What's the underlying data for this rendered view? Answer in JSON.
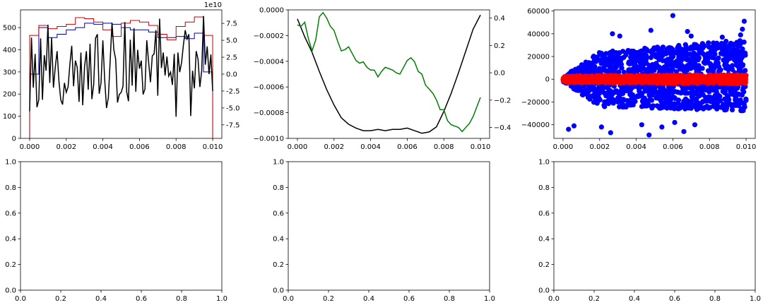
{
  "figure": {
    "colors": {
      "black": "#000000",
      "blue": "#0000ff",
      "red": "#ff0000",
      "darkred": "#cc0000",
      "green": "#008000",
      "darkblue": "#0000aa"
    }
  },
  "chart_data": [
    {
      "type": "line",
      "xlim": [
        -0.0005,
        0.0105
      ],
      "xticks": [
        0.0,
        0.002,
        0.004,
        0.006,
        0.008,
        0.01
      ],
      "xtick_labels": [
        "0.000",
        "0.002",
        "0.004",
        "0.006",
        "0.008",
        "0.010"
      ],
      "ylim": [
        0,
        580
      ],
      "yticks": [
        0,
        100,
        200,
        300,
        400,
        500
      ],
      "ytick_labels": [
        "0",
        "100",
        "200",
        "300",
        "400",
        "500"
      ],
      "y2lim": [
        -95000000000.0,
        95000000000.0
      ],
      "y2ticks": [
        -7.5,
        -5.0,
        -2.5,
        0.0,
        2.5,
        5.0,
        7.5
      ],
      "y2tick_labels": [
        "-7.5",
        "-5.0",
        "-2.5",
        "0.0",
        "2.5",
        "5.0",
        "7.5"
      ],
      "y2_offset_label": "1e10",
      "y2_tick_scale": 10000000000.0,
      "series": [
        {
          "kind": "step",
          "axis": "left",
          "color": "#0000aa",
          "edges": [
            0.0,
            0.0005,
            0.001,
            0.0015,
            0.002,
            0.0025,
            0.003,
            0.0035,
            0.004,
            0.0045,
            0.005,
            0.0055,
            0.006,
            0.0065,
            0.007,
            0.0075,
            0.008,
            0.0085,
            0.009,
            0.0095,
            0.01
          ],
          "values": [
            290,
            500,
            455,
            470,
            490,
            500,
            520,
            515,
            520,
            515,
            500,
            490,
            490,
            480,
            455,
            455,
            460,
            450,
            475,
            300
          ]
        },
        {
          "kind": "step",
          "axis": "left",
          "color": "#cc0000",
          "edges": [
            0.0,
            0.0005,
            0.001,
            0.0015,
            0.002,
            0.0025,
            0.003,
            0.0035,
            0.004,
            0.0045,
            0.005,
            0.0055,
            0.006,
            0.0065,
            0.007,
            0.0075,
            0.008,
            0.0085,
            0.009,
            0.0095,
            0.01
          ],
          "values": [
            465,
            510,
            495,
            505,
            515,
            545,
            540,
            525,
            490,
            460,
            520,
            532,
            525,
            510,
            470,
            445,
            505,
            525,
            548,
            465
          ]
        },
        {
          "kind": "line",
          "axis": "right",
          "color": "#000000",
          "x": [
            0.0,
            0.0001,
            0.0002,
            0.0003,
            0.0004,
            0.0005,
            0.0006,
            0.0007,
            0.0008,
            0.0009,
            0.001,
            0.0011,
            0.0012,
            0.0013,
            0.0014,
            0.0015,
            0.0016,
            0.0017,
            0.0018,
            0.0019,
            0.002,
            0.0021,
            0.0022,
            0.0023,
            0.0024,
            0.0025,
            0.0026,
            0.0027,
            0.0028,
            0.0029,
            0.003,
            0.0031,
            0.0032,
            0.0033,
            0.0034,
            0.0035,
            0.0036,
            0.0037,
            0.0038,
            0.0039,
            0.004,
            0.0041,
            0.0042,
            0.0043,
            0.0044,
            0.0045,
            0.0046,
            0.0047,
            0.0048,
            0.0049,
            0.005,
            0.0051,
            0.0052,
            0.0053,
            0.0054,
            0.0055,
            0.0056,
            0.0057,
            0.0058,
            0.0059,
            0.006,
            0.0061,
            0.0062,
            0.0063,
            0.0064,
            0.0065,
            0.0066,
            0.0067,
            0.0068,
            0.0069,
            0.007,
            0.0071,
            0.0072,
            0.0073,
            0.0074,
            0.0075,
            0.0076,
            0.0077,
            0.0078,
            0.0079,
            0.008,
            0.0081,
            0.0082,
            0.0083,
            0.0084,
            0.0085,
            0.0086,
            0.0087,
            0.0088,
            0.0089,
            0.009,
            0.0091,
            0.0092,
            0.0093,
            0.0094,
            0.0095,
            0.0096,
            0.0097,
            0.0098,
            0.0099,
            0.01
          ],
          "y": [
            -5.5,
            5.4,
            -2.0,
            3.0,
            -4.9,
            -3.8,
            5.3,
            -3.8,
            2.8,
            0.5,
            7.3,
            -1.3,
            5.4,
            -2.0,
            1.0,
            3.4,
            -1.0,
            -3.8,
            -4.5,
            -1.3,
            -2.7,
            -1.9,
            1.5,
            4.2,
            -1.8,
            2.0,
            1.0,
            -4.1,
            3.2,
            -4.6,
            1.1,
            3.4,
            -2.3,
            4.5,
            -3.7,
            -1.5,
            5.3,
            5.9,
            -2.9,
            -1.3,
            5.0,
            -0.8,
            -5.0,
            -3.5,
            2.0,
            7.6,
            3.6,
            2.2,
            -4.2,
            -3.0,
            -2.7,
            -1.8,
            7.7,
            -2.6,
            -4.0,
            5.1,
            -1.7,
            6.8,
            -2.6,
            3.6,
            0.8,
            2.0,
            -3.0,
            -2.2,
            5.0,
            1.8,
            -1.2,
            2.7,
            3.0,
            6.5,
            -3.2,
            8.2,
            0.9,
            3.2,
            -0.2,
            2.6,
            -0.3,
            0.3,
            -1.6,
            3.0,
            -6.3,
            3.2,
            0.3,
            1.7,
            4.3,
            6.5,
            5.2,
            5.9,
            -6.2,
            0.5,
            -2.1,
            3.4,
            2.2,
            -1.9,
            0.5,
            8.6,
            1.4,
            4.1,
            0.0,
            2.9,
            -2.5
          ]
        }
      ]
    },
    {
      "type": "line",
      "xlim": [
        -0.0005,
        0.0105
      ],
      "xticks": [
        0.0,
        0.002,
        0.004,
        0.006,
        0.008,
        0.01
      ],
      "xtick_labels": [
        "0.000",
        "0.002",
        "0.004",
        "0.006",
        "0.008",
        "0.010"
      ],
      "ylim": [
        -0.001,
        0.0
      ],
      "yticks": [
        0.0,
        -0.0002,
        -0.0004,
        -0.0006,
        -0.0008,
        -0.001
      ],
      "ytick_labels": [
        "0.0000",
        "−0.0002",
        "−0.0004",
        "−0.0006",
        "−0.0008",
        "−0.0010"
      ],
      "y2lim": [
        -0.48,
        0.46
      ],
      "y2ticks": [
        0.4,
        0.2,
        0.0,
        -0.2,
        -0.4
      ],
      "y2tick_labels": [
        "0.4",
        "0.2",
        "0.0",
        "−0.2",
        "−0.4"
      ],
      "series": [
        {
          "kind": "line",
          "axis": "left",
          "color": "#000000",
          "x": [
            0.0,
            0.0004,
            0.0008,
            0.0012,
            0.0016,
            0.002,
            0.0024,
            0.0028,
            0.0032,
            0.0036,
            0.004,
            0.0044,
            0.0048,
            0.0052,
            0.0056,
            0.006,
            0.0064,
            0.0068,
            0.0072,
            0.0076,
            0.008,
            0.0084,
            0.0088,
            0.0092,
            0.0096,
            0.01
          ],
          "y": [
            -7e-05,
            -0.00021,
            -0.00033,
            -0.00048,
            -0.00062,
            -0.00074,
            -0.00084,
            -0.00089,
            -0.00092,
            -0.00094,
            -0.00094,
            -0.00093,
            -0.00094,
            -0.00093,
            -0.00093,
            -0.00092,
            -0.00094,
            -0.00096,
            -0.00095,
            -0.00091,
            -0.00079,
            -0.00065,
            -0.00049,
            -0.00032,
            -0.00015,
            -4e-05
          ]
        },
        {
          "kind": "line",
          "axis": "right",
          "color": "#008000",
          "x": [
            0.0,
            0.0002,
            0.0004,
            0.0006,
            0.0008,
            0.001,
            0.0012,
            0.0014,
            0.0016,
            0.0018,
            0.002,
            0.0022,
            0.0024,
            0.0026,
            0.0028,
            0.003,
            0.0032,
            0.0034,
            0.0036,
            0.0038,
            0.004,
            0.0042,
            0.0044,
            0.0046,
            0.0048,
            0.005,
            0.0052,
            0.0054,
            0.0056,
            0.0058,
            0.006,
            0.0062,
            0.0064,
            0.0066,
            0.0068,
            0.007,
            0.0072,
            0.0074,
            0.0076,
            0.0078,
            0.008,
            0.0082,
            0.0084,
            0.0086,
            0.0088,
            0.009,
            0.0092,
            0.0094,
            0.0096,
            0.0098,
            0.01
          ],
          "y": [
            0.35,
            0.34,
            0.37,
            0.25,
            0.16,
            0.24,
            0.41,
            0.44,
            0.4,
            0.34,
            0.31,
            0.23,
            0.16,
            0.17,
            0.19,
            0.14,
            0.09,
            0.07,
            0.08,
            0.04,
            0.02,
            0.02,
            -0.03,
            0.01,
            0.04,
            0.03,
            0.02,
            0.0,
            -0.01,
            0.04,
            0.09,
            0.11,
            0.08,
            0.01,
            -0.01,
            -0.09,
            -0.12,
            -0.15,
            -0.2,
            -0.27,
            -0.27,
            -0.35,
            -0.38,
            -0.39,
            -0.4,
            -0.43,
            -0.4,
            -0.37,
            -0.32,
            -0.25,
            -0.18
          ]
        }
      ]
    },
    {
      "type": "scatter",
      "xlim": [
        -0.0005,
        0.0105
      ],
      "xticks": [
        0.0,
        0.002,
        0.004,
        0.006,
        0.008,
        0.01
      ],
      "xtick_labels": [
        "0.000",
        "0.002",
        "0.004",
        "0.006",
        "0.008",
        "0.010"
      ],
      "ylim": [
        -52000,
        61000
      ],
      "yticks": [
        60000,
        40000,
        20000,
        0,
        -20000,
        -40000
      ],
      "ytick_labels": [
        "60000",
        "40000",
        "20000",
        "0",
        "−20000",
        "−40000"
      ],
      "series": [
        {
          "kind": "scatter",
          "color": "#0000ff",
          "band_upper": [
            [
              0.0,
              2000
            ],
            [
              0.002,
              24000
            ],
            [
              0.01,
              35000
            ]
          ],
          "band_lower": [
            [
              0.0,
              -2000
            ],
            [
              0.002,
              -24000
            ],
            [
              0.01,
              -28000
            ]
          ],
          "outliers": [
            [
              0.0003,
              -44000
            ],
            [
              0.0006,
              -41000
            ],
            [
              0.0021,
              -42000
            ],
            [
              0.0026,
              -47000
            ],
            [
              0.0027,
              40000
            ],
            [
              0.0031,
              38000
            ],
            [
              0.0043,
              -40000
            ],
            [
              0.0048,
              43000
            ],
            [
              0.0047,
              -49000
            ],
            [
              0.0054,
              -42000
            ],
            [
              0.006,
              56000
            ],
            [
              0.0061,
              -38000
            ],
            [
              0.0066,
              -46000
            ],
            [
              0.0068,
              42000
            ],
            [
              0.007,
              38000
            ],
            [
              0.0072,
              -40000
            ],
            [
              0.0087,
              37000
            ],
            [
              0.0097,
              39000
            ],
            [
              0.0098,
              44000
            ],
            [
              0.0099,
              51000
            ]
          ]
        },
        {
          "kind": "scatter",
          "color": "#ff0000",
          "band_upper": [
            [
              0.0,
              3000
            ],
            [
              0.01,
              4000
            ]
          ],
          "band_lower": [
            [
              0.0,
              -3000
            ],
            [
              0.01,
              -4000
            ]
          ]
        }
      ]
    },
    {
      "type": "line",
      "xlim": [
        0.0,
        1.0
      ],
      "xticks": [
        0.0,
        0.2,
        0.4,
        0.6,
        0.8,
        1.0
      ],
      "xtick_labels": [
        "0.0",
        "0.2",
        "0.4",
        "0.6",
        "0.8",
        "1.0"
      ],
      "ylim": [
        0.0,
        1.0
      ],
      "yticks": [
        0.0,
        0.2,
        0.4,
        0.6,
        0.8,
        1.0
      ],
      "ytick_labels": [
        "0.0",
        "0.2",
        "0.4",
        "0.6",
        "0.8",
        "1.0"
      ],
      "series": []
    },
    {
      "type": "line",
      "xlim": [
        0.0,
        1.0
      ],
      "xticks": [
        0.0,
        0.2,
        0.4,
        0.6,
        0.8,
        1.0
      ],
      "xtick_labels": [
        "0.0",
        "0.2",
        "0.4",
        "0.6",
        "0.8",
        "1.0"
      ],
      "ylim": [
        0.0,
        1.0
      ],
      "yticks": [
        0.0,
        0.2,
        0.4,
        0.6,
        0.8,
        1.0
      ],
      "ytick_labels": [
        "0.0",
        "0.2",
        "0.4",
        "0.6",
        "0.8",
        "1.0"
      ],
      "series": []
    },
    {
      "type": "line",
      "xlim": [
        0.0,
        1.0
      ],
      "xticks": [
        0.0,
        0.2,
        0.4,
        0.6,
        0.8,
        1.0
      ],
      "xtick_labels": [
        "0.0",
        "0.2",
        "0.4",
        "0.6",
        "0.8",
        "1.0"
      ],
      "ylim": [
        0.0,
        1.0
      ],
      "yticks": [
        0.0,
        0.2,
        0.4,
        0.6,
        0.8,
        1.0
      ],
      "ytick_labels": [
        "0.0",
        "0.2",
        "0.4",
        "0.6",
        "0.8",
        "1.0"
      ],
      "series": []
    }
  ]
}
